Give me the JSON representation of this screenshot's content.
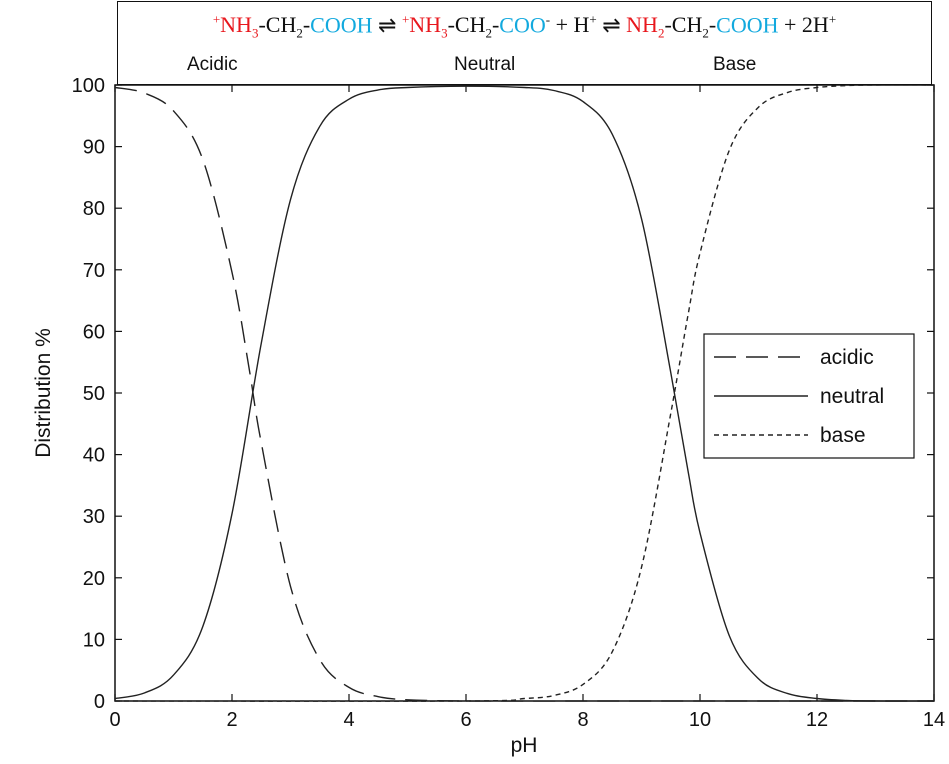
{
  "equation": {
    "species1": {
      "charge": "+",
      "amine": "NH",
      "amine_sub": "3",
      "linker": "-CH",
      "linker_sub": "2",
      "dash": "-",
      "acid": "COOH"
    },
    "arrow1": " ⇌ ",
    "species2": {
      "charge": "+",
      "amine": "NH",
      "amine_sub": "3",
      "linker": "-CH",
      "linker_sub": "2",
      "dash": "-",
      "acid": "COO",
      "acid_charge": "-",
      "plus": " + H",
      "h_charge": "+"
    },
    "arrow2": " ⇌ ",
    "species3": {
      "amine": "NH",
      "amine_sub": "2",
      "linker": "-CH",
      "linker_sub": "2",
      "dash": "-",
      "acid": "COOH",
      "plus": " + 2H",
      "h_charge": "+"
    },
    "labels": {
      "acidic": "Acidic",
      "neutral": "Neutral",
      "base": "Base"
    }
  },
  "colors": {
    "amine": "#e8171d",
    "acid_group": "#12a9de",
    "curves": "#222222"
  },
  "chart_data": {
    "type": "line",
    "xlabel": "pH",
    "ylabel": "Distribution %",
    "xlim": [
      0,
      14
    ],
    "ylim": [
      0,
      100
    ],
    "xticks": [
      "0",
      "2",
      "4",
      "6",
      "8",
      "10",
      "12",
      "14"
    ],
    "yticks": [
      "0",
      "10",
      "20",
      "30",
      "40",
      "50",
      "60",
      "70",
      "80",
      "90",
      "100"
    ],
    "grid": false,
    "legend_position": "right",
    "series": [
      {
        "name": "acidic",
        "style": "long-dash",
        "x": [
          0,
          0.5,
          1,
          1.5,
          2,
          2.3,
          2.5,
          3,
          3.5,
          4,
          4.5,
          5,
          6,
          8,
          10,
          12,
          14
        ],
        "y": [
          99.6,
          98.7,
          95.8,
          87.9,
          69.6,
          53.5,
          41.9,
          18.6,
          6.7,
          2.2,
          0.7,
          0.2,
          0,
          0,
          0,
          0,
          0
        ]
      },
      {
        "name": "neutral",
        "style": "solid",
        "x": [
          0,
          0.5,
          1,
          1.5,
          2,
          2.5,
          3,
          3.5,
          4,
          4.5,
          5,
          6,
          7,
          7.5,
          8,
          8.5,
          9,
          9.5,
          9.8,
          10,
          10.5,
          11,
          11.5,
          12,
          12.5,
          13,
          14
        ],
        "y": [
          0.4,
          1.3,
          4.2,
          12.1,
          30.4,
          58.1,
          81.4,
          93.3,
          97.7,
          99.2,
          99.6,
          99.8,
          99.6,
          99.1,
          97.3,
          92.0,
          78.3,
          53.3,
          37.1,
          27.3,
          10.6,
          3.6,
          1.2,
          0.4,
          0.1,
          0,
          0
        ]
      },
      {
        "name": "base",
        "style": "dotted",
        "x": [
          0,
          6,
          7,
          7.5,
          8,
          8.5,
          9,
          9.5,
          9.8,
          10,
          10.5,
          11,
          11.5,
          12,
          12.5,
          13,
          14
        ],
        "y": [
          0,
          0,
          0.4,
          0.9,
          2.7,
          8.0,
          21.7,
          46.7,
          62.9,
          72.7,
          89.4,
          96.4,
          98.8,
          99.6,
          99.9,
          100,
          100
        ]
      }
    ]
  }
}
